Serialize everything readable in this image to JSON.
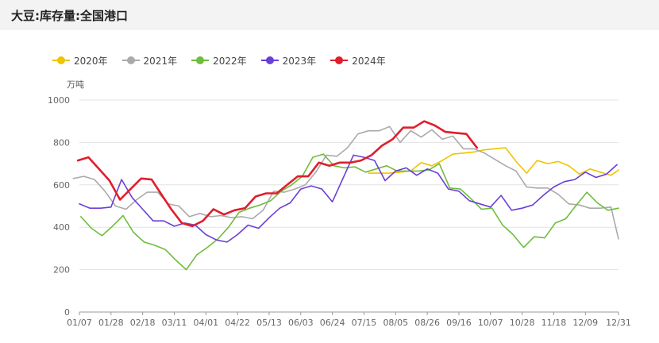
{
  "title": "大豆:库存量:全国港口",
  "chart_data": {
    "type": "line",
    "ylabel": "万吨",
    "ylim": [
      0,
      1000
    ],
    "yticks": [
      0,
      200,
      400,
      600,
      800,
      1000
    ],
    "xticks": [
      "01/07",
      "01/28",
      "02/18",
      "03/11",
      "04/01",
      "04/22",
      "05/13",
      "06/03",
      "06/24",
      "07/15",
      "08/05",
      "08/26",
      "09/16",
      "10/07",
      "10/28",
      "11/18",
      "12/09",
      "12/31"
    ],
    "grid": true,
    "legend_position": "top-left",
    "series": [
      {
        "name": "2020年",
        "color": "#f0c400",
        "points": [
          [
            "07/18",
            655
          ],
          [
            "07/25",
            655
          ],
          [
            "08/01",
            655
          ],
          [
            "08/08",
            660
          ],
          [
            "08/15",
            665
          ],
          [
            "08/22",
            705
          ],
          [
            "08/29",
            690
          ],
          [
            "09/05",
            715
          ],
          [
            "09/12",
            745
          ],
          [
            "09/19",
            750
          ],
          [
            "09/26",
            755
          ],
          [
            "10/03",
            765
          ],
          [
            "10/10",
            770
          ],
          [
            "10/17",
            775
          ],
          [
            "10/24",
            710
          ],
          [
            "10/31",
            655
          ],
          [
            "11/07",
            715
          ],
          [
            "11/14",
            700
          ],
          [
            "11/21",
            710
          ],
          [
            "11/28",
            690
          ],
          [
            "12/05",
            650
          ],
          [
            "12/12",
            675
          ],
          [
            "12/19",
            660
          ],
          [
            "12/26",
            645
          ],
          [
            "12/31",
            670
          ]
        ]
      },
      {
        "name": "2021年",
        "color": "#aaaaaa",
        "points": [
          [
            "01/03",
            630
          ],
          [
            "01/10",
            640
          ],
          [
            "01/17",
            625
          ],
          [
            "01/24",
            570
          ],
          [
            "01/31",
            500
          ],
          [
            "02/07",
            485
          ],
          [
            "02/14",
            530
          ],
          [
            "02/21",
            565
          ],
          [
            "02/28",
            565
          ],
          [
            "03/07",
            510
          ],
          [
            "03/14",
            500
          ],
          [
            "03/21",
            450
          ],
          [
            "03/28",
            465
          ],
          [
            "04/04",
            450
          ],
          [
            "04/11",
            455
          ],
          [
            "04/18",
            445
          ],
          [
            "04/25",
            450
          ],
          [
            "05/02",
            440
          ],
          [
            "05/09",
            480
          ],
          [
            "05/16",
            570
          ],
          [
            "05/23",
            565
          ],
          [
            "05/30",
            580
          ],
          [
            "06/06",
            600
          ],
          [
            "06/13",
            660
          ],
          [
            "06/20",
            740
          ],
          [
            "06/27",
            735
          ],
          [
            "07/04",
            775
          ],
          [
            "07/11",
            840
          ],
          [
            "07/18",
            855
          ],
          [
            "07/25",
            855
          ],
          [
            "08/01",
            875
          ],
          [
            "08/08",
            800
          ],
          [
            "08/15",
            855
          ],
          [
            "08/22",
            825
          ],
          [
            "08/29",
            860
          ],
          [
            "09/05",
            815
          ],
          [
            "09/12",
            830
          ],
          [
            "09/19",
            770
          ],
          [
            "09/26",
            770
          ],
          [
            "10/03",
            750
          ],
          [
            "10/10",
            720
          ],
          [
            "10/17",
            690
          ],
          [
            "10/24",
            665
          ],
          [
            "10/31",
            590
          ],
          [
            "11/07",
            585
          ],
          [
            "11/14",
            585
          ],
          [
            "11/21",
            555
          ],
          [
            "11/28",
            510
          ],
          [
            "12/05",
            505
          ],
          [
            "12/12",
            490
          ],
          [
            "12/19",
            490
          ],
          [
            "12/26",
            495
          ],
          [
            "12/31",
            345
          ]
        ]
      },
      {
        "name": "2022年",
        "color": "#6fbd3c",
        "points": [
          [
            "01/08",
            450
          ],
          [
            "01/15",
            395
          ],
          [
            "01/22",
            360
          ],
          [
            "01/29",
            405
          ],
          [
            "02/05",
            455
          ],
          [
            "02/12",
            375
          ],
          [
            "02/19",
            330
          ],
          [
            "02/26",
            315
          ],
          [
            "03/05",
            295
          ],
          [
            "03/12",
            245
          ],
          [
            "03/19",
            200
          ],
          [
            "03/26",
            270
          ],
          [
            "04/02",
            305
          ],
          [
            "04/09",
            345
          ],
          [
            "04/16",
            400
          ],
          [
            "04/23",
            470
          ],
          [
            "04/30",
            490
          ],
          [
            "05/07",
            505
          ],
          [
            "05/14",
            525
          ],
          [
            "05/21",
            570
          ],
          [
            "05/28",
            600
          ],
          [
            "06/04",
            640
          ],
          [
            "06/11",
            730
          ],
          [
            "06/18",
            745
          ],
          [
            "06/25",
            690
          ],
          [
            "07/02",
            680
          ],
          [
            "07/09",
            685
          ],
          [
            "07/16",
            660
          ],
          [
            "07/23",
            675
          ],
          [
            "07/30",
            690
          ],
          [
            "08/06",
            665
          ],
          [
            "08/13",
            665
          ],
          [
            "08/20",
            665
          ],
          [
            "08/27",
            670
          ],
          [
            "09/03",
            700
          ],
          [
            "09/10",
            585
          ],
          [
            "09/17",
            580
          ],
          [
            "09/24",
            535
          ],
          [
            "10/01",
            485
          ],
          [
            "10/08",
            490
          ],
          [
            "10/15",
            410
          ],
          [
            "10/22",
            365
          ],
          [
            "10/29",
            305
          ],
          [
            "11/05",
            355
          ],
          [
            "11/12",
            350
          ],
          [
            "11/19",
            420
          ],
          [
            "11/26",
            440
          ],
          [
            "12/03",
            505
          ],
          [
            "12/10",
            565
          ],
          [
            "12/17",
            515
          ],
          [
            "12/24",
            480
          ],
          [
            "12/31",
            490
          ]
        ]
      },
      {
        "name": "2023年",
        "color": "#6a3fd6",
        "points": [
          [
            "01/07",
            510
          ],
          [
            "01/14",
            490
          ],
          [
            "01/21",
            490
          ],
          [
            "01/28",
            495
          ],
          [
            "02/04",
            625
          ],
          [
            "02/11",
            540
          ],
          [
            "02/18",
            485
          ],
          [
            "02/25",
            430
          ],
          [
            "03/04",
            430
          ],
          [
            "03/11",
            405
          ],
          [
            "03/18",
            420
          ],
          [
            "03/25",
            410
          ],
          [
            "04/01",
            365
          ],
          [
            "04/08",
            340
          ],
          [
            "04/15",
            330
          ],
          [
            "04/22",
            365
          ],
          [
            "04/29",
            410
          ],
          [
            "05/06",
            395
          ],
          [
            "05/13",
            445
          ],
          [
            "05/20",
            490
          ],
          [
            "05/27",
            515
          ],
          [
            "06/03",
            580
          ],
          [
            "06/10",
            595
          ],
          [
            "06/17",
            580
          ],
          [
            "06/24",
            520
          ],
          [
            "07/01",
            630
          ],
          [
            "07/08",
            740
          ],
          [
            "07/15",
            730
          ],
          [
            "07/22",
            715
          ],
          [
            "07/29",
            620
          ],
          [
            "08/05",
            665
          ],
          [
            "08/12",
            680
          ],
          [
            "08/19",
            645
          ],
          [
            "08/26",
            675
          ],
          [
            "09/02",
            655
          ],
          [
            "09/09",
            580
          ],
          [
            "09/16",
            570
          ],
          [
            "09/23",
            525
          ],
          [
            "09/30",
            510
          ],
          [
            "10/07",
            495
          ],
          [
            "10/14",
            550
          ],
          [
            "10/21",
            480
          ],
          [
            "10/28",
            490
          ],
          [
            "11/04",
            505
          ],
          [
            "11/11",
            550
          ],
          [
            "11/18",
            590
          ],
          [
            "11/25",
            615
          ],
          [
            "12/02",
            625
          ],
          [
            "12/09",
            660
          ],
          [
            "12/16",
            635
          ],
          [
            "12/23",
            650
          ],
          [
            "12/30",
            695
          ]
        ]
      },
      {
        "name": "2024年",
        "color": "#e01e2d",
        "points": [
          [
            "01/06",
            715
          ],
          [
            "01/13",
            730
          ],
          [
            "01/20",
            675
          ],
          [
            "01/27",
            620
          ],
          [
            "02/03",
            530
          ],
          [
            "02/10",
            580
          ],
          [
            "02/17",
            630
          ],
          [
            "02/24",
            625
          ],
          [
            "03/02",
            560
          ],
          [
            "03/09",
            485
          ],
          [
            "03/16",
            420
          ],
          [
            "03/23",
            405
          ],
          [
            "03/30",
            430
          ],
          [
            "04/06",
            485
          ],
          [
            "04/13",
            460
          ],
          [
            "04/20",
            480
          ],
          [
            "04/27",
            490
          ],
          [
            "05/04",
            545
          ],
          [
            "05/11",
            560
          ],
          [
            "05/18",
            560
          ],
          [
            "05/25",
            600
          ],
          [
            "06/01",
            640
          ],
          [
            "06/08",
            640
          ],
          [
            "06/15",
            705
          ],
          [
            "06/22",
            690
          ],
          [
            "06/29",
            705
          ],
          [
            "07/06",
            705
          ],
          [
            "07/13",
            715
          ],
          [
            "07/20",
            740
          ],
          [
            "07/27",
            785
          ],
          [
            "08/03",
            815
          ],
          [
            "08/10",
            870
          ],
          [
            "08/17",
            870
          ],
          [
            "08/24",
            900
          ],
          [
            "08/31",
            880
          ],
          [
            "09/07",
            850
          ],
          [
            "09/14",
            845
          ],
          [
            "09/21",
            840
          ],
          [
            "09/28",
            775
          ]
        ]
      }
    ]
  }
}
